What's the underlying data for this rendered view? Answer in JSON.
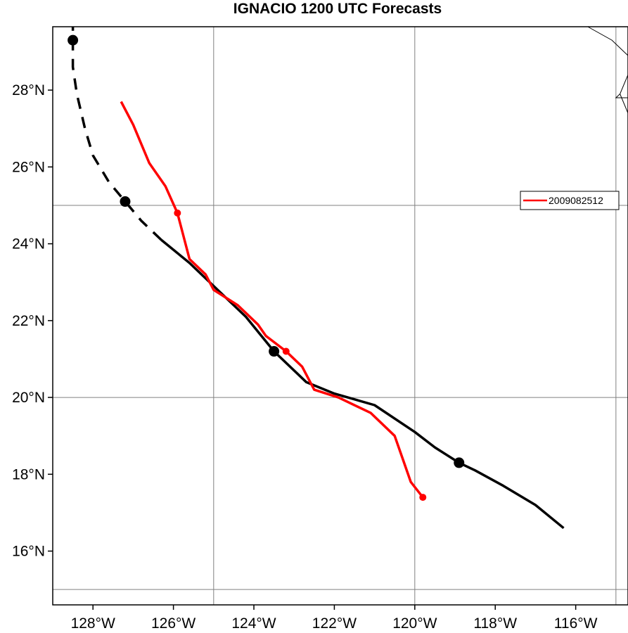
{
  "title": "IGNACIO 1200 UTC Forecasts",
  "colors": {
    "observed_track": "#000000",
    "forecast_track": "#ff0000",
    "grid": "#808080",
    "coastline": "#000000"
  },
  "legend": {
    "placement": "right",
    "entries": [
      {
        "label": "2009082512",
        "color": "#ff0000"
      }
    ]
  },
  "map": {
    "lon_range": [
      -129.0,
      -114.7
    ],
    "lat_range": [
      14.6,
      29.65
    ],
    "x_ticks": [
      {
        "value": -128,
        "label": "128°W"
      },
      {
        "value": -126,
        "label": "126°W"
      },
      {
        "value": -124,
        "label": "124°W"
      },
      {
        "value": -122,
        "label": "122°W"
      },
      {
        "value": -120,
        "label": "120°W"
      },
      {
        "value": -118,
        "label": "118°W"
      },
      {
        "value": -116,
        "label": "116°W"
      }
    ],
    "y_ticks": [
      {
        "value": 16,
        "label": "16°N"
      },
      {
        "value": 18,
        "label": "18°N"
      },
      {
        "value": 20,
        "label": "20°N"
      },
      {
        "value": 22,
        "label": "22°N"
      },
      {
        "value": 24,
        "label": "24°N"
      },
      {
        "value": 26,
        "label": "26°N"
      },
      {
        "value": 28,
        "label": "28°N"
      }
    ],
    "grid_lons": [
      -125,
      -120,
      -115
    ],
    "grid_lats": [
      15,
      20,
      25
    ],
    "coastlines": [
      [
        [
          -115.7,
          29.65
        ],
        [
          -115.1,
          29.3
        ],
        [
          -114.7,
          28.9
        ]
      ],
      [
        [
          -114.7,
          28.4
        ],
        [
          -114.9,
          27.9
        ],
        [
          -115.0,
          27.8
        ],
        [
          -114.7,
          27.8
        ]
      ],
      [
        [
          -114.9,
          27.9
        ],
        [
          -114.7,
          27.4
        ]
      ]
    ]
  },
  "chart_data": {
    "type": "map-track",
    "title": "IGNACIO 1200 UTC Forecasts",
    "observed_track": {
      "solid_points": [
        [
          -116.3,
          16.6
        ],
        [
          -117.0,
          17.2
        ],
        [
          -117.8,
          17.7
        ],
        [
          -118.5,
          18.1
        ],
        [
          -118.9,
          18.3
        ],
        [
          -119.5,
          18.7
        ],
        [
          -120.0,
          19.1
        ],
        [
          -121.0,
          19.8
        ],
        [
          -122.0,
          20.1
        ],
        [
          -122.7,
          20.4
        ],
        [
          -123.5,
          21.2
        ],
        [
          -124.2,
          22.1
        ],
        [
          -124.9,
          22.8
        ],
        [
          -125.6,
          23.5
        ],
        [
          -126.3,
          24.1
        ]
      ],
      "dashed_points": [
        [
          -126.3,
          24.1
        ],
        [
          -126.8,
          24.6
        ],
        [
          -127.2,
          25.1
        ],
        [
          -127.6,
          25.6
        ],
        [
          -128.0,
          26.3
        ],
        [
          -128.2,
          27.0
        ],
        [
          -128.4,
          27.9
        ],
        [
          -128.5,
          28.6
        ],
        [
          -128.5,
          29.3
        ],
        [
          -128.5,
          29.65
        ]
      ],
      "markers": [
        [
          -118.9,
          18.3
        ],
        [
          -123.5,
          21.2
        ],
        [
          -127.2,
          25.1
        ],
        [
          -128.5,
          29.3
        ]
      ]
    },
    "forecast_tracks": [
      {
        "name": "2009082512",
        "points": [
          [
            -119.8,
            17.4
          ],
          [
            -120.1,
            17.8
          ],
          [
            -120.3,
            18.4
          ],
          [
            -120.5,
            19.0
          ],
          [
            -121.1,
            19.6
          ],
          [
            -121.9,
            20.0
          ],
          [
            -122.5,
            20.2
          ],
          [
            -122.8,
            20.8
          ],
          [
            -123.2,
            21.2
          ],
          [
            -123.7,
            21.6
          ],
          [
            -123.9,
            21.9
          ],
          [
            -124.4,
            22.4
          ],
          [
            -125.0,
            22.8
          ],
          [
            -125.2,
            23.2
          ],
          [
            -125.6,
            23.6
          ],
          [
            -125.9,
            24.8
          ],
          [
            -126.2,
            25.5
          ],
          [
            -126.6,
            26.1
          ],
          [
            -127.0,
            27.1
          ],
          [
            -127.3,
            27.7
          ]
        ],
        "markers": [
          [
            -119.8,
            17.4
          ],
          [
            -123.2,
            21.2
          ],
          [
            -125.9,
            24.8
          ]
        ]
      }
    ]
  }
}
